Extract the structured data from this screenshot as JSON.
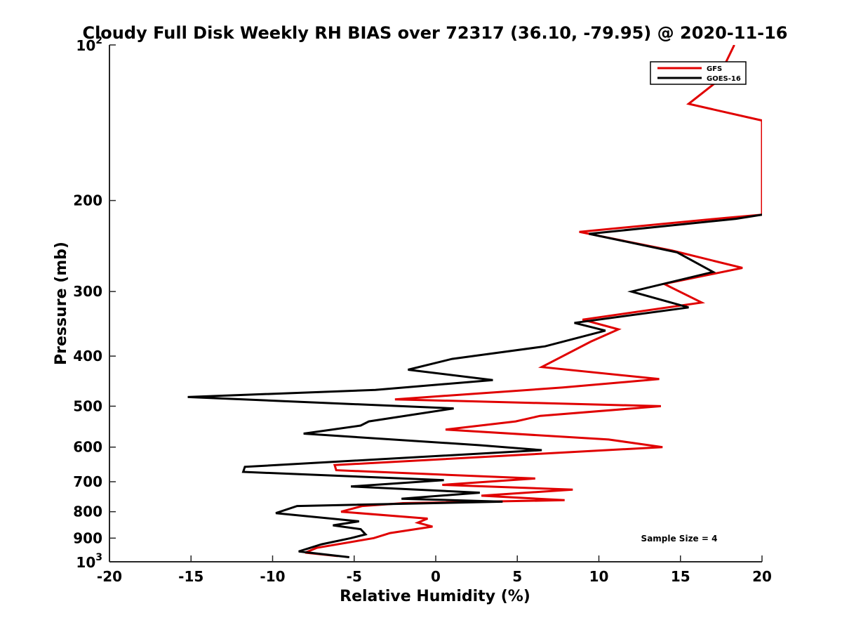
{
  "chart_data": {
    "type": "line",
    "title": "Cloudy Full Disk Weekly RH BIAS over 72317 (36.10, -79.95) @ 2020-11-16",
    "xlabel": "Relative Humidity (%)",
    "ylabel": "Pressure (mb)",
    "xlim": [
      -20,
      20
    ],
    "ylim": [
      100,
      1000
    ],
    "y_scale": "log",
    "y_reversed": true,
    "xticks": [
      -20,
      -15,
      -10,
      -5,
      0,
      5,
      10,
      15,
      20
    ],
    "xtick_labels": [
      "-20",
      "-15",
      "-10",
      "-5",
      "0",
      "5",
      "10",
      "15",
      "20"
    ],
    "yticks": [
      200,
      300,
      400,
      500,
      600,
      700,
      800,
      900
    ],
    "ytick_labels": [
      "200",
      "300",
      "400",
      "500",
      "600",
      "700",
      "800",
      "900"
    ],
    "ytick_power_labels": [
      {
        "value": 100,
        "base": "10",
        "exp": "2"
      },
      {
        "value": 1000,
        "base": "10",
        "exp": "3"
      }
    ],
    "grid": false,
    "legend_position": "top-right",
    "annotation": "Sample Size = 4",
    "series": [
      {
        "name": "GFS",
        "color": "#e00000",
        "points": [
          [
            18.3,
            100
          ],
          [
            17.2,
            118
          ],
          [
            15.5,
            130
          ],
          [
            20.0,
            140
          ],
          [
            20.0,
            213
          ],
          [
            17.8,
            216
          ],
          [
            8.8,
            230
          ],
          [
            14.5,
            250
          ],
          [
            18.8,
            270
          ],
          [
            14.0,
            290
          ],
          [
            16.3,
            315
          ],
          [
            9.0,
            340
          ],
          [
            11.2,
            355
          ],
          [
            9.5,
            375
          ],
          [
            6.5,
            420
          ],
          [
            13.7,
            443
          ],
          [
            7.8,
            460
          ],
          [
            -2.5,
            485
          ],
          [
            13.8,
            500
          ],
          [
            6.4,
            522
          ],
          [
            4.9,
            535
          ],
          [
            0.6,
            555
          ],
          [
            10.6,
            580
          ],
          [
            13.9,
            600
          ],
          [
            -6.2,
            650
          ],
          [
            -6.1,
            665
          ],
          [
            6.1,
            690
          ],
          [
            0.4,
            710
          ],
          [
            8.4,
            725
          ],
          [
            2.8,
            745
          ],
          [
            7.9,
            760
          ],
          [
            -2.0,
            770
          ],
          [
            -4.5,
            780
          ],
          [
            -5.8,
            800
          ],
          [
            -0.5,
            825
          ],
          [
            -1.1,
            840
          ],
          [
            -0.2,
            855
          ],
          [
            -2.8,
            880
          ],
          [
            -3.8,
            900
          ],
          [
            -7.3,
            940
          ],
          [
            -8.0,
            960
          ],
          [
            -6.0,
            975
          ]
        ]
      },
      {
        "name": "GOES-16",
        "color": "#000000",
        "points": [
          [
            20.0,
            213
          ],
          [
            18.4,
            217
          ],
          [
            9.4,
            232
          ],
          [
            14.8,
            252
          ],
          [
            17.0,
            275
          ],
          [
            12.0,
            300
          ],
          [
            15.5,
            322
          ],
          [
            8.5,
            345
          ],
          [
            10.4,
            357
          ],
          [
            6.7,
            383
          ],
          [
            1.0,
            405
          ],
          [
            -1.7,
            425
          ],
          [
            3.5,
            445
          ],
          [
            -3.7,
            465
          ],
          [
            -15.2,
            480
          ],
          [
            1.1,
            505
          ],
          [
            -4.1,
            535
          ],
          [
            -4.6,
            545
          ],
          [
            -8.1,
            565
          ],
          [
            2.7,
            595
          ],
          [
            6.5,
            608
          ],
          [
            -11.7,
            655
          ],
          [
            -11.8,
            670
          ],
          [
            0.5,
            695
          ],
          [
            -5.2,
            715
          ],
          [
            2.7,
            735
          ],
          [
            -2.1,
            755
          ],
          [
            4.1,
            765
          ],
          [
            -8.5,
            780
          ],
          [
            -9.8,
            805
          ],
          [
            -4.7,
            835
          ],
          [
            -6.3,
            850
          ],
          [
            -4.6,
            865
          ],
          [
            -4.3,
            885
          ],
          [
            -5.2,
            900
          ],
          [
            -7.0,
            925
          ],
          [
            -8.4,
            955
          ],
          [
            -5.3,
            980
          ]
        ]
      }
    ]
  }
}
